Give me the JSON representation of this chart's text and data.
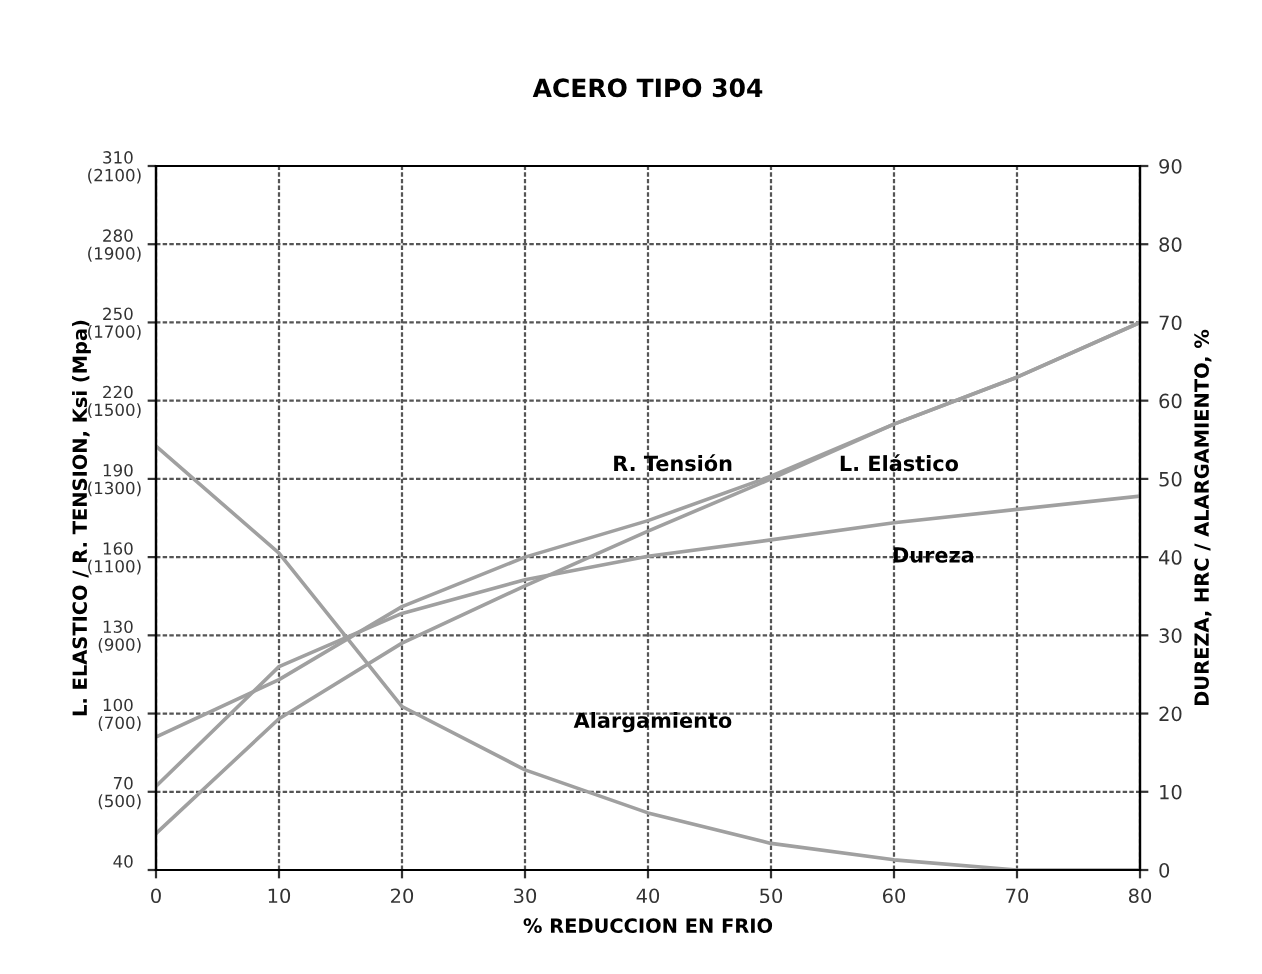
{
  "chart_data": {
    "type": "line",
    "title": "ACERO TIPO 304",
    "xlabel": "% REDUCCION EN FRIO",
    "ylabel": "L. ELASTICO / R. TENSION, Ksi (Mpa)",
    "y2label": "DUREZA, HRC / ALARGAMIENTO, %",
    "x": [
      0,
      10,
      20,
      30,
      40,
      50,
      60,
      70,
      80
    ],
    "series": [
      {
        "name": "R. Tensión",
        "color": "#a0a0a0",
        "values": [
          91,
          113,
          141,
          160,
          174,
          191,
          211,
          229,
          250
        ]
      },
      {
        "name": "L. Elástico",
        "color": "#a0a0a0",
        "values": [
          54,
          98,
          127,
          149,
          170,
          190,
          211,
          229,
          250
        ]
      },
      {
        "name": "Dureza",
        "color": "#a0a0a0",
        "axis": "y2",
        "values": [
          10.7,
          26,
          32.8,
          37.1,
          40.1,
          42.2,
          44.4,
          46.1,
          47.8
        ]
      },
      {
        "name": "Alargamiento",
        "color": "#a0a0a0",
        "axis": "y2",
        "values": [
          54.2,
          40.5,
          20.9,
          12.8,
          7.3,
          3.4,
          1.3,
          0,
          0
        ]
      }
    ],
    "xlim": [
      0,
      80
    ],
    "xticks": [
      0,
      10,
      20,
      30,
      40,
      50,
      60,
      70,
      80
    ],
    "ylim": [
      40,
      310
    ],
    "yticks": [
      40,
      70,
      100,
      130,
      160,
      190,
      220,
      250,
      280,
      310
    ],
    "y3lim": [
      300,
      2100
    ],
    "y3ticks": [
      {
        "value": 500,
        "label": "(500)"
      },
      {
        "value": 700,
        "label": "(700)"
      },
      {
        "value": 900,
        "label": "(900)"
      },
      {
        "value": 1100,
        "label": "(1100)"
      },
      {
        "value": 1300,
        "label": "(1300)"
      },
      {
        "value": 1500,
        "label": "(1500)"
      },
      {
        "value": 1700,
        "label": "(1700)"
      },
      {
        "value": 1900,
        "label": "(1900)"
      },
      {
        "value": 2100,
        "label": "(2100)"
      }
    ],
    "y2lim": [
      0,
      90
    ],
    "y2ticks": [
      0,
      10,
      20,
      30,
      40,
      50,
      60,
      70,
      80,
      90
    ],
    "grid": true,
    "line_style": "solid",
    "marker": "none",
    "legend": false
  }
}
